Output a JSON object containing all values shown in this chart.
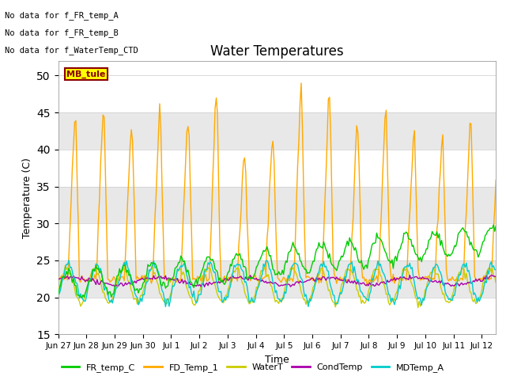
{
  "title": "Water Temperatures",
  "xlabel": "Time",
  "ylabel": "Temperature (C)",
  "ylim": [
    15,
    52
  ],
  "yticks": [
    15,
    20,
    25,
    30,
    35,
    40,
    45,
    50
  ],
  "annotations": [
    "No data for f_FR_temp_A",
    "No data for f_FR_temp_B",
    "No data for f_WaterTemp_CTD"
  ],
  "mb_tule_label": "MB_tule",
  "colors": {
    "FR_temp_C": "#00cc00",
    "FD_Temp_1": "#ffaa00",
    "WaterT": "#cccc00",
    "CondTemp": "#aa00aa",
    "MDTemp_A": "#00cccc"
  },
  "xtick_labels": [
    "Jun 27",
    "Jun 28",
    "Jun 29",
    "Jun 30",
    "Jul 1",
    "Jul 2",
    "Jul 3",
    "Jul 4",
    "Jul 5",
    "Jul 6",
    "Jul 7",
    "Jul 8",
    "Jul 9",
    "Jul 10",
    "Jul 11",
    "Jul 12"
  ],
  "band_color": "#e8e8e8",
  "band_ranges": [
    [
      20,
      25
    ],
    [
      30,
      35
    ],
    [
      40,
      45
    ]
  ],
  "background_color": "#ffffff"
}
